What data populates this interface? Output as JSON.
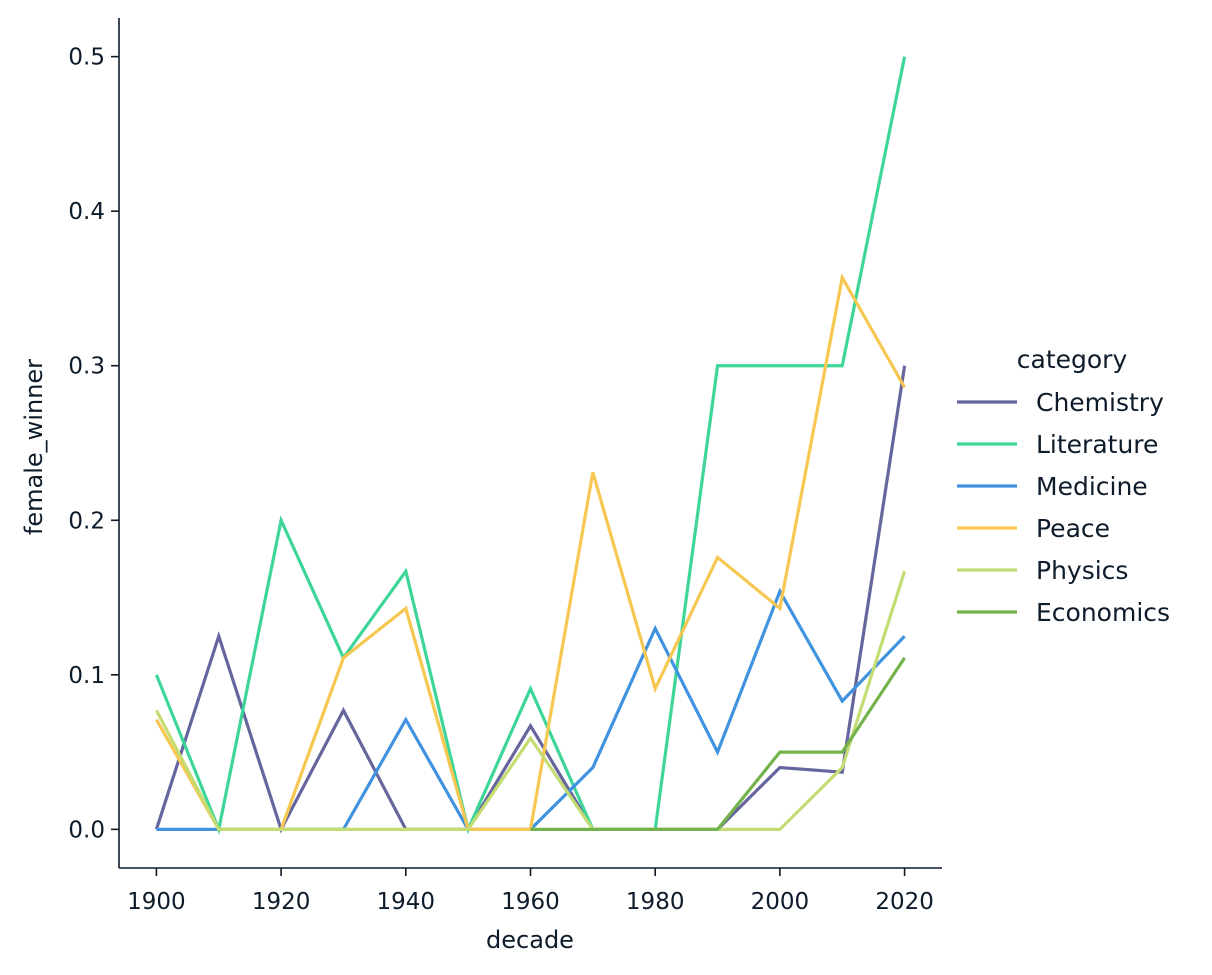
{
  "chart_data": {
    "type": "line",
    "xlabel": "decade",
    "ylabel": "female_winner",
    "x_ticks": [
      1900,
      1920,
      1940,
      1960,
      1980,
      2000,
      2020
    ],
    "y_ticks": [
      0.0,
      0.1,
      0.2,
      0.3,
      0.4,
      0.5
    ],
    "y_tick_labels": [
      "0.0",
      "0.1",
      "0.2",
      "0.3",
      "0.4",
      "0.5"
    ],
    "xlim": [
      1894,
      2026
    ],
    "ylim": [
      -0.025,
      0.525
    ],
    "grid": false,
    "legend": {
      "title": "category",
      "placement": "right"
    },
    "series": [
      {
        "name": "Chemistry",
        "color": "#65669d",
        "x": [
          1900,
          1910,
          1920,
          1930,
          1940,
          1950,
          1960,
          1970,
          1980,
          1990,
          2000,
          2010,
          2020
        ],
        "values": [
          0.0,
          0.125,
          0.0,
          0.077,
          0.0,
          0.0,
          0.067,
          0.0,
          0.0,
          0.0,
          0.04,
          0.037,
          0.3
        ]
      },
      {
        "name": "Literature",
        "color": "#3ed698",
        "x": [
          1900,
          1910,
          1920,
          1930,
          1940,
          1950,
          1960,
          1970,
          1980,
          1990,
          2000,
          2010,
          2020
        ],
        "values": [
          0.1,
          0.0,
          0.2,
          0.111,
          0.167,
          0.0,
          0.091,
          0.0,
          0.0,
          0.3,
          0.3,
          0.3,
          0.5
        ]
      },
      {
        "name": "Medicine",
        "color": "#4193df",
        "x": [
          1900,
          1910,
          1920,
          1930,
          1940,
          1950,
          1960,
          1970,
          1980,
          1990,
          2000,
          2010,
          2020
        ],
        "values": [
          0.0,
          0.0,
          0.0,
          0.0,
          0.071,
          0.0,
          0.0,
          0.04,
          0.13,
          0.05,
          0.154,
          0.083,
          0.125
        ]
      },
      {
        "name": "Peace",
        "color": "#f6c751",
        "x": [
          1900,
          1910,
          1920,
          1930,
          1940,
          1950,
          1960,
          1970,
          1980,
          1990,
          2000,
          2010,
          2020
        ],
        "values": [
          0.071,
          0.0,
          0.0,
          0.111,
          0.143,
          0.0,
          0.0,
          0.231,
          0.091,
          0.176,
          0.143,
          0.357,
          0.286
        ]
      },
      {
        "name": "Physics",
        "color": "#c3dd72",
        "x": [
          1900,
          1910,
          1920,
          1930,
          1940,
          1950,
          1960,
          1970,
          1980,
          1990,
          2000,
          2010,
          2020
        ],
        "values": [
          0.077,
          0.0,
          0.0,
          0.0,
          0.0,
          0.0,
          0.059,
          0.0,
          0.0,
          0.0,
          0.0,
          0.04,
          0.167
        ]
      },
      {
        "name": "Economics",
        "color": "#74b24b",
        "x": [
          1960,
          1970,
          1980,
          1990,
          2000,
          2010,
          2020
        ],
        "values": [
          0.0,
          0.0,
          0.0,
          0.0,
          0.05,
          0.05,
          0.111
        ]
      }
    ]
  }
}
